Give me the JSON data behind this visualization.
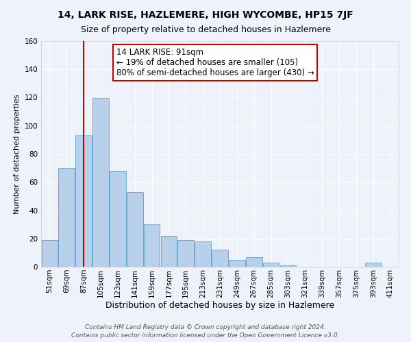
{
  "title": "14, LARK RISE, HAZLEMERE, HIGH WYCOMBE, HP15 7JF",
  "subtitle": "Size of property relative to detached houses in Hazlemere",
  "xlabel": "Distribution of detached houses by size in Hazlemere",
  "ylabel": "Number of detached properties",
  "bar_labels": [
    "51sqm",
    "69sqm",
    "87sqm",
    "105sqm",
    "123sqm",
    "141sqm",
    "159sqm",
    "177sqm",
    "195sqm",
    "213sqm",
    "231sqm",
    "249sqm",
    "267sqm",
    "285sqm",
    "303sqm",
    "321sqm",
    "339sqm",
    "357sqm",
    "375sqm",
    "393sqm",
    "411sqm"
  ],
  "bar_values": [
    19,
    70,
    93,
    120,
    68,
    53,
    30,
    22,
    19,
    18,
    12,
    5,
    7,
    3,
    1,
    0,
    0,
    0,
    0,
    3,
    0
  ],
  "bar_color": "#b8d0ea",
  "bar_edge_color": "#6aaad4",
  "vline_x_index": 2,
  "vline_color": "#cc0000",
  "ylim": [
    0,
    160
  ],
  "yticks": [
    0,
    20,
    40,
    60,
    80,
    100,
    120,
    140,
    160
  ],
  "annotation_title": "14 LARK RISE: 91sqm",
  "annotation_line1": "← 19% of detached houses are smaller (105)",
  "annotation_line2": "80% of semi-detached houses are larger (430) →",
  "annotation_box_color": "#ffffff",
  "annotation_box_edge": "#cc0000",
  "footer1": "Contains HM Land Registry data © Crown copyright and database right 2024.",
  "footer2": "Contains public sector information licensed under the Open Government Licence v3.0.",
  "background_color": "#eef2fb",
  "grid_color": "#ffffff",
  "title_fontsize": 10,
  "subtitle_fontsize": 9,
  "xlabel_fontsize": 9,
  "ylabel_fontsize": 8,
  "tick_fontsize": 7.5,
  "annotation_fontsize": 8.5,
  "footer_fontsize": 6.5
}
